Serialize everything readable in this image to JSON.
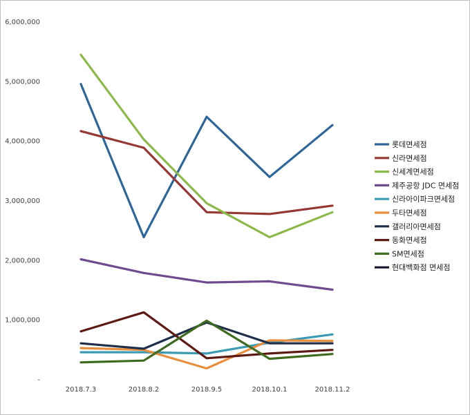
{
  "chart_data": {
    "type": "line",
    "categories": [
      "2018.7.3",
      "2018.8.2",
      "2018.9.5",
      "2018.10.1",
      "2018.11.2"
    ],
    "ylim": [
      0,
      6000000
    ],
    "yticks": [
      0,
      1000000,
      2000000,
      3000000,
      4000000,
      5000000,
      6000000
    ],
    "ytick_labels": [
      "-",
      "1,000,000",
      "2,000,000",
      "3,000,000",
      "4,000,000",
      "5,000,000",
      "6,000,000"
    ],
    "grid": false,
    "legend_position": "right",
    "series": [
      {
        "name": "롯데면세점",
        "color": "#2E6699",
        "values": [
          4950000,
          2380000,
          4400000,
          3390000,
          4260000
        ]
      },
      {
        "name": "신라면세점",
        "color": "#953735",
        "values": [
          4160000,
          3880000,
          2800000,
          2770000,
          2910000
        ]
      },
      {
        "name": "신세계면세점",
        "color": "#8DB84A",
        "values": [
          5440000,
          4020000,
          2950000,
          2380000,
          2800000
        ]
      },
      {
        "name": "제주공항 JDC 면세점",
        "color": "#6E4B8F",
        "values": [
          2010000,
          1780000,
          1620000,
          1640000,
          1500000
        ]
      },
      {
        "name": "신라아이파크면세점",
        "color": "#3B9BB3",
        "values": [
          450000,
          450000,
          430000,
          610000,
          750000
        ]
      },
      {
        "name": "두타면세점",
        "color": "#E88F3F",
        "values": [
          520000,
          490000,
          180000,
          650000,
          640000
        ]
      },
      {
        "name": "갤러리아면세점",
        "color": "#1F2F4A",
        "values": [
          600000,
          510000,
          950000,
          600000,
          600000
        ]
      },
      {
        "name": "동화면세점",
        "color": "#5C1A12",
        "values": [
          800000,
          1120000,
          350000,
          430000,
          490000
        ]
      },
      {
        "name": "SM면세점",
        "color": "#3E6B1F",
        "values": [
          280000,
          310000,
          980000,
          340000,
          420000
        ]
      },
      {
        "name": "현대백화점 면세점",
        "color": "#15152E",
        "values": [
          null,
          null,
          null,
          null,
          null
        ]
      }
    ]
  }
}
